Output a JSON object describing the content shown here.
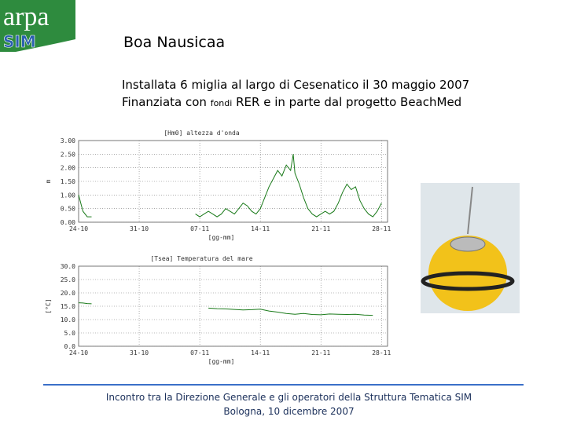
{
  "logo": {
    "top": "arpa",
    "bottom": "SIM"
  },
  "header": {
    "title": "Boa Nausicaa",
    "line1": "Installata 6 miglia al largo di Cesenatico il 30 maggio 2007",
    "line2": [
      "Finanziata con",
      "fondi",
      "RER e in parte dal progetto BeachMed"
    ]
  },
  "chart_data": [
    {
      "type": "line",
      "title": "[Hm0] altezza d'onda",
      "ylabel": "m",
      "xlabel": "[gg-mm]",
      "x": [
        0,
        0.5,
        1,
        1.5,
        7,
        13.5,
        14,
        14.5,
        15,
        15.5,
        16,
        16.5,
        17,
        17.5,
        18,
        18.5,
        19,
        19.5,
        20,
        20.5,
        21,
        21.5,
        22,
        22.5,
        23,
        23.5,
        24,
        24.5,
        24.8,
        25,
        25.5,
        26,
        26.5,
        27,
        27.5,
        28,
        28.5,
        29,
        29.5,
        30,
        30.5,
        31,
        31.5,
        32,
        32.5,
        33,
        33.5,
        34,
        34.5,
        35
      ],
      "values": [
        1.0,
        0.4,
        0.2,
        0.2,
        null,
        0.3,
        0.2,
        0.3,
        0.4,
        0.3,
        0.2,
        0.3,
        0.5,
        0.4,
        0.3,
        0.5,
        0.7,
        0.6,
        0.4,
        0.3,
        0.5,
        0.9,
        1.3,
        1.6,
        1.9,
        1.7,
        2.1,
        1.9,
        2.5,
        1.8,
        1.4,
        0.9,
        0.5,
        0.3,
        0.2,
        0.3,
        0.4,
        0.3,
        0.4,
        0.7,
        1.1,
        1.4,
        1.2,
        1.3,
        0.8,
        0.5,
        0.3,
        0.2,
        0.4,
        0.7
      ],
      "color": "#1a7a1a",
      "xlim": [
        0,
        35.7
      ],
      "xticks": [
        {
          "value": 0,
          "label": "24-10"
        },
        {
          "value": 7,
          "label": "31-10"
        },
        {
          "value": 14,
          "label": "07-11"
        },
        {
          "value": 21,
          "label": "14-11"
        },
        {
          "value": 28,
          "label": "21-11"
        },
        {
          "value": 35,
          "label": "28-11"
        }
      ],
      "ylim": [
        0,
        3
      ],
      "yticks": [
        {
          "value": 0,
          "label": "0.00"
        },
        {
          "value": 0.5,
          "label": "0.50"
        },
        {
          "value": 1,
          "label": "1.00"
        },
        {
          "value": 1.5,
          "label": "1.50"
        },
        {
          "value": 2,
          "label": "2.00"
        },
        {
          "value": 2.5,
          "label": "2.50"
        },
        {
          "value": 3,
          "label": "3.00"
        }
      ],
      "grid": true
    },
    {
      "type": "line",
      "title": "[Tsea] Temperatura del mare",
      "ylabel": "[°C]",
      "xlabel": "[gg-mm]",
      "x": [
        0,
        0.5,
        1,
        1.5,
        7,
        15,
        16,
        17,
        18,
        19,
        20,
        21,
        22,
        23,
        24,
        25,
        26,
        27,
        28,
        29,
        30,
        31,
        32,
        33,
        34
      ],
      "values": [
        16.3,
        16.2,
        16.0,
        15.9,
        null,
        14.3,
        14.1,
        14.0,
        13.8,
        13.6,
        13.7,
        13.9,
        13.2,
        12.8,
        12.3,
        12.0,
        12.3,
        11.9,
        11.8,
        12.1,
        12.0,
        11.9,
        12.0,
        11.7,
        11.6
      ],
      "color": "#1a7a1a",
      "xlim": [
        0,
        35.7
      ],
      "xticks": [
        {
          "value": 0,
          "label": "24-10"
        },
        {
          "value": 7,
          "label": "31-10"
        },
        {
          "value": 14,
          "label": "07-11"
        },
        {
          "value": 21,
          "label": "14-11"
        },
        {
          "value": 28,
          "label": "21-11"
        },
        {
          "value": 35,
          "label": "28-11"
        }
      ],
      "ylim": [
        0,
        30
      ],
      "yticks": [
        {
          "value": 0,
          "label": "0.0"
        },
        {
          "value": 5,
          "label": "5.0"
        },
        {
          "value": 10,
          "label": "10.0"
        },
        {
          "value": 15,
          "label": "15.0"
        },
        {
          "value": 20,
          "label": "20.0"
        },
        {
          "value": 25,
          "label": "25.0"
        },
        {
          "value": 30,
          "label": "30.0"
        }
      ],
      "grid": true
    }
  ],
  "footer": {
    "line1": "Incontro tra la Direzione Generale e gli operatori della Struttura Tematica SIM",
    "line2": "Bologna, 10 dicembre 2007"
  }
}
